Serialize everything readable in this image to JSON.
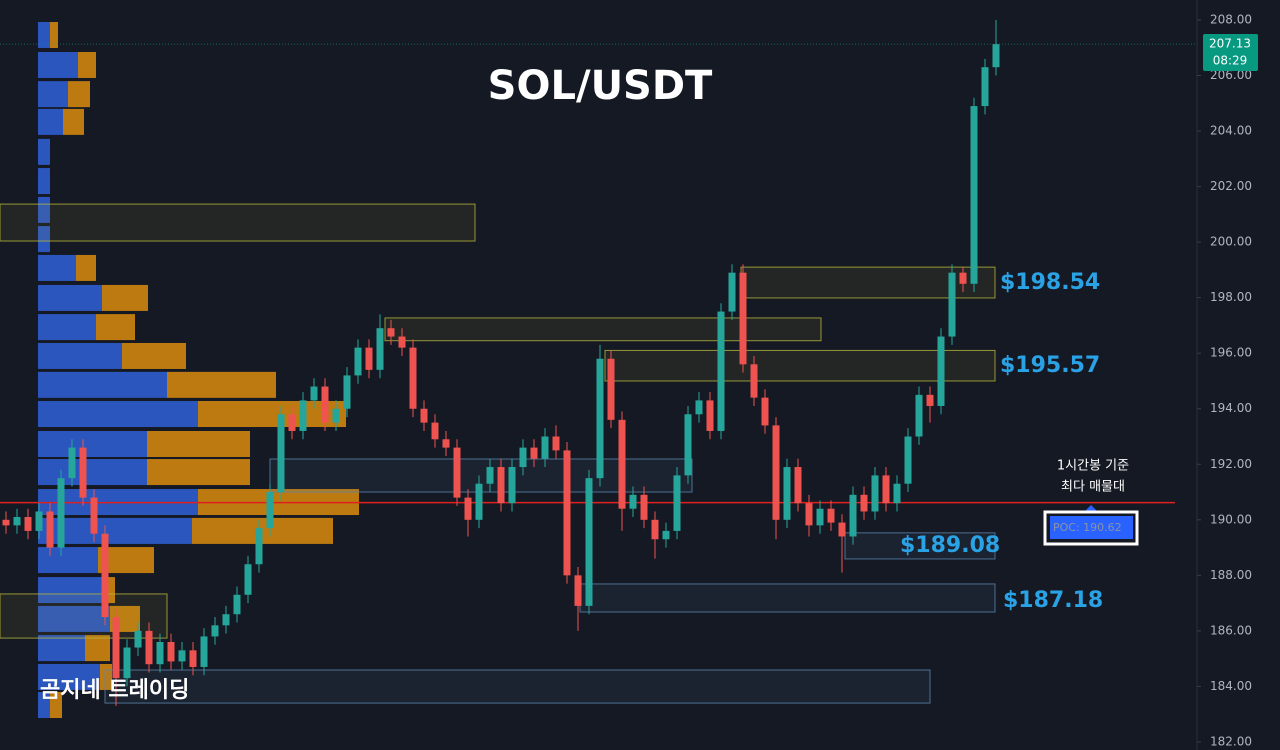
{
  "chart_data": {
    "type": "candlestick",
    "title": "SOL/USDT",
    "watermark": "곰지네 트레이딩",
    "ylim": [
      181.71,
      208.72
    ],
    "yticks": [
      {
        "value": 182,
        "label": "182.00"
      },
      {
        "value": 184,
        "label": "184.00"
      },
      {
        "value": 186,
        "label": "186.00"
      },
      {
        "value": 188,
        "label": "188.00"
      },
      {
        "value": 190,
        "label": "190.00"
      },
      {
        "value": 192,
        "label": "192.00"
      },
      {
        "value": 194,
        "label": "194.00"
      },
      {
        "value": 196,
        "label": "196.00"
      },
      {
        "value": 198,
        "label": "198.00"
      },
      {
        "value": 200,
        "label": "200.00"
      },
      {
        "value": 202,
        "label": "202.00"
      },
      {
        "value": 204,
        "label": "204.00"
      },
      {
        "value": 206,
        "label": "206.00"
      },
      {
        "value": 208,
        "label": "208.00"
      }
    ],
    "colors": {
      "up": "#26a69a",
      "down": "#ef5350"
    },
    "open": [
      190.0,
      189.8,
      190.1,
      189.6,
      190.3,
      189.0,
      191.5,
      192.6,
      190.8,
      189.5,
      186.5,
      184.3,
      185.4,
      186.0,
      184.8,
      185.6,
      184.9,
      185.3,
      184.7,
      185.8,
      186.2,
      186.6,
      187.3,
      188.4,
      189.7,
      191.0,
      193.8,
      193.2,
      194.3,
      194.8,
      193.5,
      194.0,
      195.2,
      196.2,
      195.4,
      196.9,
      196.6,
      196.2,
      194.0,
      193.5,
      192.9,
      192.6,
      190.8,
      190.0,
      191.3,
      191.9,
      190.6,
      191.9,
      192.6,
      192.2,
      193.0,
      192.5,
      188.0,
      186.9,
      191.5,
      195.8,
      193.6,
      190.4,
      190.9,
      190.0,
      189.3,
      189.6,
      191.6,
      193.8,
      194.3,
      193.2,
      197.5,
      198.9,
      195.6,
      194.4,
      193.4,
      190.0,
      191.9,
      190.6,
      189.8,
      190.4,
      189.9,
      189.4,
      190.9,
      190.3,
      191.6,
      190.6,
      191.3,
      193.0,
      194.5,
      194.1,
      196.6,
      198.9,
      198.5,
      204.9,
      206.3
    ],
    "high": [
      190.3,
      190.4,
      190.4,
      190.6,
      190.6,
      191.8,
      192.9,
      192.9,
      191.1,
      189.8,
      186.8,
      185.7,
      186.3,
      186.3,
      185.9,
      185.9,
      185.6,
      185.6,
      186.1,
      186.5,
      186.9,
      187.6,
      188.7,
      190.0,
      191.3,
      194.1,
      194.1,
      194.6,
      195.1,
      195.1,
      194.3,
      195.5,
      196.5,
      196.5,
      197.4,
      197.2,
      196.9,
      196.5,
      194.3,
      193.8,
      193.2,
      192.9,
      191.1,
      191.6,
      192.2,
      192.2,
      192.2,
      192.9,
      192.9,
      193.3,
      193.4,
      192.8,
      188.3,
      191.8,
      196.3,
      196.1,
      193.9,
      191.2,
      191.2,
      190.3,
      189.9,
      191.9,
      194.1,
      194.6,
      194.6,
      197.8,
      199.2,
      199.2,
      195.9,
      194.7,
      193.7,
      192.2,
      192.2,
      190.9,
      190.7,
      190.7,
      190.2,
      191.2,
      191.2,
      191.9,
      191.9,
      191.6,
      193.3,
      194.8,
      194.8,
      196.9,
      199.2,
      199.1,
      205.2,
      206.6,
      208.0
    ],
    "low": [
      189.5,
      189.5,
      189.3,
      189.3,
      188.7,
      188.7,
      191.2,
      190.5,
      189.2,
      186.2,
      183.3,
      184.0,
      185.1,
      184.5,
      184.5,
      184.6,
      184.6,
      184.4,
      184.4,
      185.5,
      185.9,
      186.3,
      187.0,
      188.1,
      189.4,
      190.7,
      192.9,
      192.9,
      194.0,
      193.2,
      193.2,
      193.7,
      194.9,
      195.1,
      195.1,
      196.3,
      195.9,
      193.7,
      193.2,
      192.6,
      192.3,
      190.5,
      189.4,
      189.7,
      191.0,
      190.3,
      190.3,
      191.6,
      191.9,
      191.9,
      192.2,
      187.7,
      186.0,
      186.6,
      191.2,
      193.3,
      189.6,
      190.1,
      189.7,
      188.6,
      189.0,
      189.3,
      191.3,
      193.5,
      192.9,
      192.9,
      197.2,
      195.3,
      194.1,
      193.1,
      189.3,
      189.7,
      190.3,
      189.4,
      189.5,
      189.6,
      188.1,
      189.1,
      190.0,
      190.0,
      190.3,
      190.3,
      191.0,
      192.7,
      193.5,
      193.8,
      196.3,
      198.2,
      198.2,
      204.6,
      206.0
    ],
    "close": [
      189.8,
      190.1,
      189.6,
      190.3,
      189.0,
      191.5,
      192.6,
      190.8,
      189.5,
      186.5,
      184.3,
      185.4,
      186.0,
      184.8,
      185.6,
      184.9,
      185.3,
      184.7,
      185.8,
      186.2,
      186.6,
      187.3,
      188.4,
      189.7,
      191.0,
      193.8,
      193.2,
      194.3,
      194.8,
      193.5,
      194.0,
      195.2,
      196.2,
      195.4,
      196.9,
      196.6,
      196.2,
      194.0,
      193.5,
      192.9,
      192.6,
      190.8,
      190.0,
      191.3,
      191.9,
      190.6,
      191.9,
      192.6,
      192.2,
      193.0,
      192.5,
      188.0,
      186.9,
      191.5,
      195.8,
      193.6,
      190.4,
      190.9,
      190.0,
      189.3,
      189.6,
      191.6,
      193.8,
      194.3,
      193.2,
      197.5,
      198.9,
      195.6,
      194.4,
      193.4,
      190.0,
      191.9,
      190.6,
      189.8,
      190.4,
      189.9,
      189.4,
      190.9,
      190.3,
      191.6,
      190.6,
      191.3,
      193.0,
      194.5,
      194.1,
      196.6,
      198.9,
      198.5,
      204.9,
      206.3,
      207.13
    ],
    "last_price": {
      "value": 207.13,
      "label": "207.13",
      "color": "#089981"
    },
    "countdown": "08:29",
    "poc": {
      "value": 190.62,
      "label": "POC: 190.62",
      "color": "#e0201f",
      "note_lines": [
        "1시간봉 기준",
        "최다 매물대"
      ]
    },
    "levels": [
      {
        "value": 198.54,
        "label": "$198.54"
      },
      {
        "value": 195.57,
        "label": "$195.57"
      },
      {
        "value": 189.08,
        "label": "$189.08"
      },
      {
        "value": 187.18,
        "label": "$187.18"
      }
    ],
    "zones": [
      {
        "low": 200.04,
        "high": 201.37,
        "color": "#b5b53a"
      },
      {
        "low": 197.99,
        "high": 199.1,
        "color": "#b5b53a"
      },
      {
        "low": 196.45,
        "high": 197.27,
        "color": "#b5b53a"
      },
      {
        "low": 195.0,
        "high": 196.1,
        "color": "#b5b53a"
      },
      {
        "low": 191.0,
        "high": 192.19,
        "color": "#5a86ad"
      },
      {
        "low": 188.59,
        "high": 189.53,
        "color": "#5a86ad"
      },
      {
        "low": 186.68,
        "high": 187.69,
        "color": "#5a86ad"
      },
      {
        "low": 185.74,
        "high": 187.33,
        "color": "#b5b53a"
      },
      {
        "low": 183.4,
        "high": 184.59,
        "color": "#5a86ad"
      }
    ],
    "volume_profile": {
      "xlim": [
        0,
        322
      ],
      "colors": {
        "buy": "#2f62d8",
        "sell": "#d98c0e"
      },
      "prices": [
        207.46,
        206.38,
        205.33,
        204.33,
        203.25,
        202.2,
        201.16,
        200.11,
        199.07,
        197.99,
        196.94,
        195.9,
        194.86,
        193.81,
        192.73,
        191.72,
        190.64,
        189.6,
        188.55,
        187.47,
        186.43,
        185.38,
        184.34,
        183.33
      ],
      "buy": [
        12,
        40,
        30,
        25,
        12,
        12,
        12,
        12,
        38,
        64,
        58,
        84,
        129,
        160,
        109,
        109,
        160,
        154,
        60,
        66,
        72,
        47,
        62,
        12
      ],
      "sell": [
        8,
        18,
        22,
        21,
        0,
        0,
        0,
        0,
        20,
        46,
        39,
        64,
        109,
        148,
        103,
        103,
        161,
        141,
        56,
        11,
        30,
        25,
        12,
        12
      ]
    }
  }
}
